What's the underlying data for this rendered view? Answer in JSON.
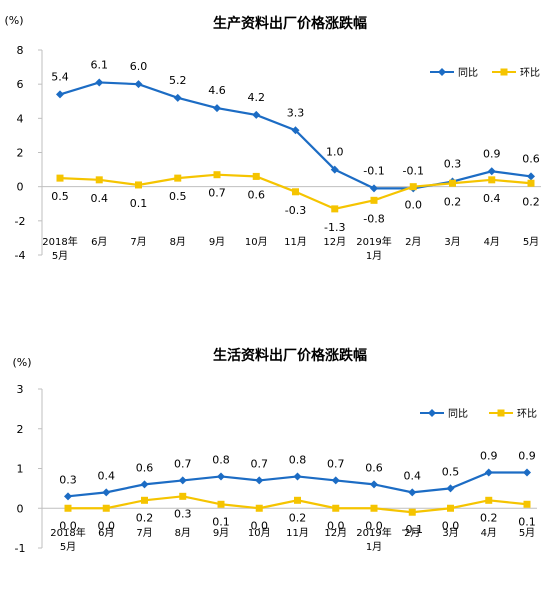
{
  "colors": {
    "yoy": "#1C6CC4",
    "mom": "#F5C400",
    "axis": "#BFBFBF",
    "text": "#000000"
  },
  "chart_data": [
    {
      "type": "line",
      "title": "生产资料出厂价格涨跌幅",
      "yunit": "(%)",
      "ylim": [
        -4,
        8
      ],
      "yticks": [
        8,
        6,
        4,
        2,
        0,
        -2,
        -4
      ],
      "categories": [
        "2018年\n5月",
        "6月",
        "7月",
        "8月",
        "9月",
        "10月",
        "11月",
        "12月",
        "2019年\n1月",
        "2月",
        "3月",
        "4月",
        "5月"
      ],
      "legend_position": "top-right",
      "grid": false,
      "series": [
        {
          "name": "同比",
          "marker": "diamond",
          "color": "#1C6CC4",
          "values": [
            5.4,
            6.1,
            6.0,
            5.2,
            4.6,
            4.2,
            3.3,
            1.0,
            -0.1,
            -0.1,
            0.3,
            0.9,
            0.6
          ],
          "labels": [
            "5.4",
            "6.1",
            "6.0",
            "5.2",
            "4.6",
            "4.2",
            "3.3",
            "1.0",
            "-0.1",
            "-0.1",
            "0.3",
            "0.9",
            "0.6"
          ]
        },
        {
          "name": "环比",
          "marker": "square",
          "color": "#F5C400",
          "values": [
            0.5,
            0.4,
            0.1,
            0.5,
            0.7,
            0.6,
            -0.3,
            -1.3,
            -0.8,
            0.0,
            0.2,
            0.4,
            0.2
          ],
          "labels": [
            "0.5",
            "0.4",
            "0.1",
            "0.5",
            "0.7",
            "0.6",
            "-0.3",
            "-1.3",
            "-0.8",
            "0.0",
            "0.2",
            "0.4",
            "0.2"
          ]
        }
      ]
    },
    {
      "type": "line",
      "title": "生活资料出厂价格涨跌幅",
      "yunit": "(%)",
      "ylim": [
        -1,
        3
      ],
      "yticks": [
        3,
        2,
        1,
        0,
        -1
      ],
      "categories": [
        "2018年\n5月",
        "6月",
        "7月",
        "8月",
        "9月",
        "10月",
        "11月",
        "12月",
        "2019年\n1月",
        "2月",
        "3月",
        "4月",
        "5月"
      ],
      "legend_position": "top-right",
      "grid": false,
      "series": [
        {
          "name": "同比",
          "marker": "diamond",
          "color": "#1C6CC4",
          "values": [
            0.3,
            0.4,
            0.6,
            0.7,
            0.8,
            0.7,
            0.8,
            0.7,
            0.6,
            0.4,
            0.5,
            0.9,
            0.9
          ],
          "labels": [
            "0.3",
            "0.4",
            "0.6",
            "0.7",
            "0.8",
            "0.7",
            "0.8",
            "0.7",
            "0.6",
            "0.4",
            "0.5",
            "0.9",
            "0.9"
          ]
        },
        {
          "name": "环比",
          "marker": "square",
          "color": "#F5C400",
          "values": [
            0.0,
            0.0,
            0.2,
            0.3,
            0.1,
            0.0,
            0.2,
            0.0,
            0.0,
            -0.1,
            0.0,
            0.2,
            0.1
          ],
          "labels": [
            "0.0",
            "0.0",
            "0.2",
            "0.3",
            "0.1",
            "0.0",
            "0.2",
            "0.0",
            "0.0",
            "-0.1",
            "0.0",
            "0.2",
            "0.1"
          ]
        }
      ]
    }
  ]
}
